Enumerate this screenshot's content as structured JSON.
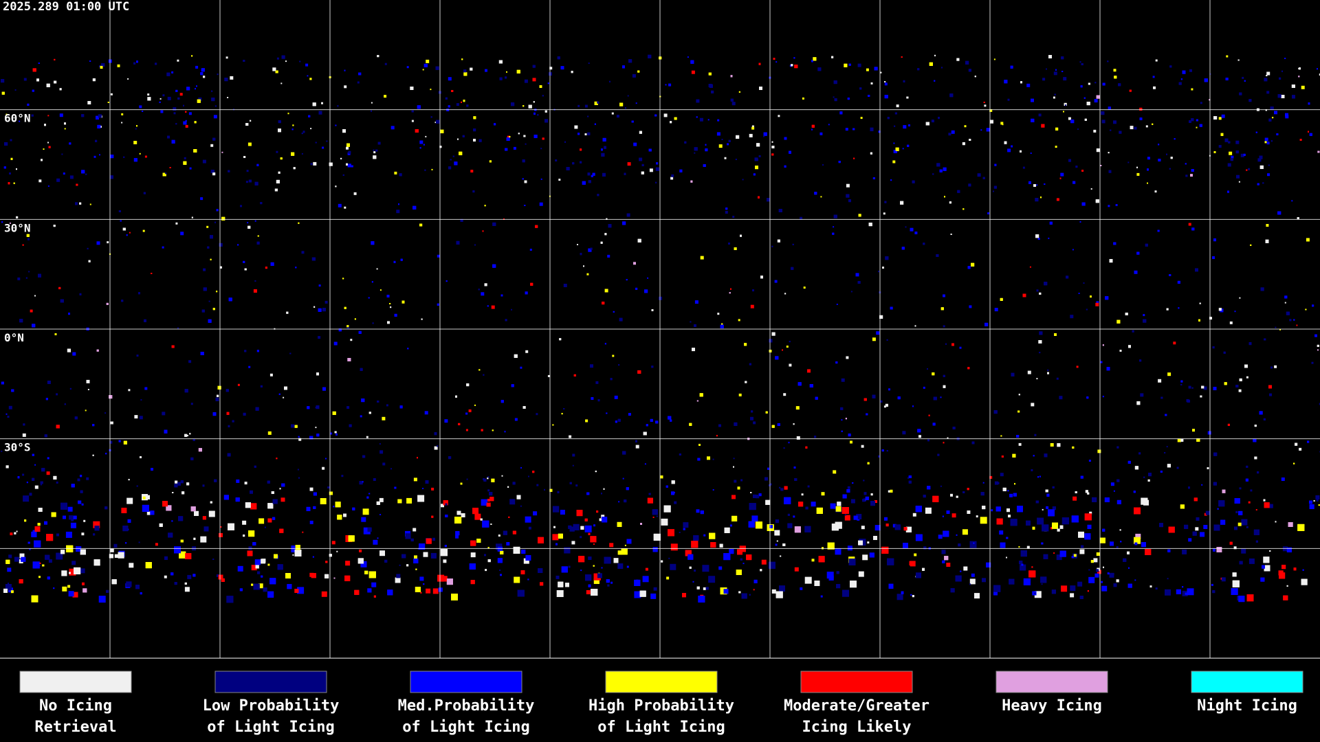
{
  "timestamp": "2025.289 01:00 UTC",
  "lat_labels": [
    "60°N",
    "30°N",
    "0°N",
    "30°S"
  ],
  "legend": [
    {
      "lines": [
        "No Icing",
        "Retrieval"
      ],
      "color": "#f0f0f0"
    },
    {
      "lines": [
        "Low Probability",
        "of Light Icing"
      ],
      "color": "#000080"
    },
    {
      "lines": [
        "Med.Probability",
        "of Light Icing"
      ],
      "color": "#0000ff"
    },
    {
      "lines": [
        "High Probability",
        "of Light Icing"
      ],
      "color": "#ffff00"
    },
    {
      "lines": [
        "Moderate/Greater",
        "Icing Likely"
      ],
      "color": "#ff0000"
    },
    {
      "lines": [
        "Heavy Icing"
      ],
      "color": "#e0a0e0"
    },
    {
      "lines": [
        "Night Icing"
      ],
      "color": "#00ffff"
    }
  ]
}
